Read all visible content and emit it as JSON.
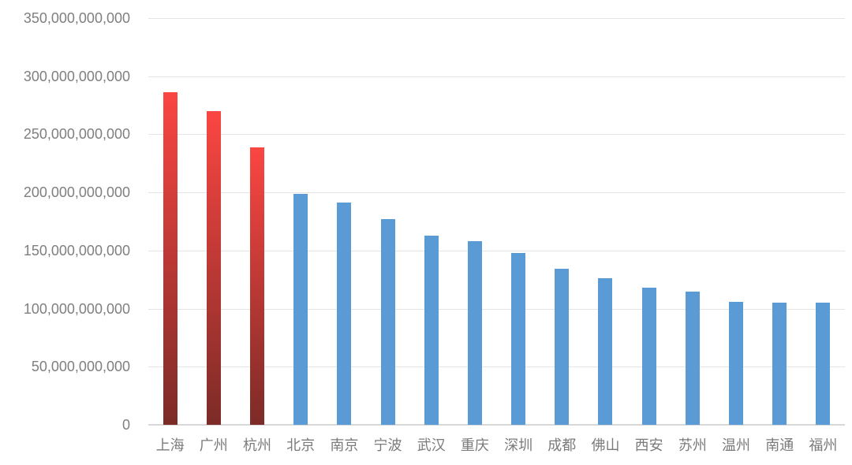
{
  "chart_data": {
    "type": "bar",
    "title": "",
    "xlabel": "",
    "ylabel": "",
    "categories": [
      "上海",
      "广州",
      "杭州",
      "北京",
      "南京",
      "宁波",
      "武汉",
      "重庆",
      "深圳",
      "成都",
      "佛山",
      "西安",
      "苏州",
      "温州",
      "南通",
      "福州"
    ],
    "values": [
      286500000000,
      270000000000,
      238500000000,
      198500000000,
      191000000000,
      177000000000,
      162500000000,
      158000000000,
      148000000000,
      134500000000,
      126500000000,
      118000000000,
      114500000000,
      105500000000,
      105000000000,
      105000000000
    ],
    "ylim": [
      0,
      350000000000
    ],
    "ytick_interval": 50000000000,
    "ytick_labels": [
      "0",
      "50,000,000,000",
      "100,000,000,000",
      "150,000,000,000",
      "200,000,000,000",
      "250,000,000,000",
      "300,000,000,000",
      "350,000,000,000"
    ],
    "grid": true,
    "legend": false,
    "colors": {
      "bar_default": "#5b9bd5",
      "highlight_gradient_top": "#fb4642",
      "highlight_gradient_bottom": "#7c2b27",
      "gridline": "#e4e4e4",
      "baseline": "#d8d8d8",
      "axis_text": "#7f7f7f",
      "background": "#ffffff"
    },
    "highlight_indices": [
      0,
      1,
      2
    ]
  }
}
